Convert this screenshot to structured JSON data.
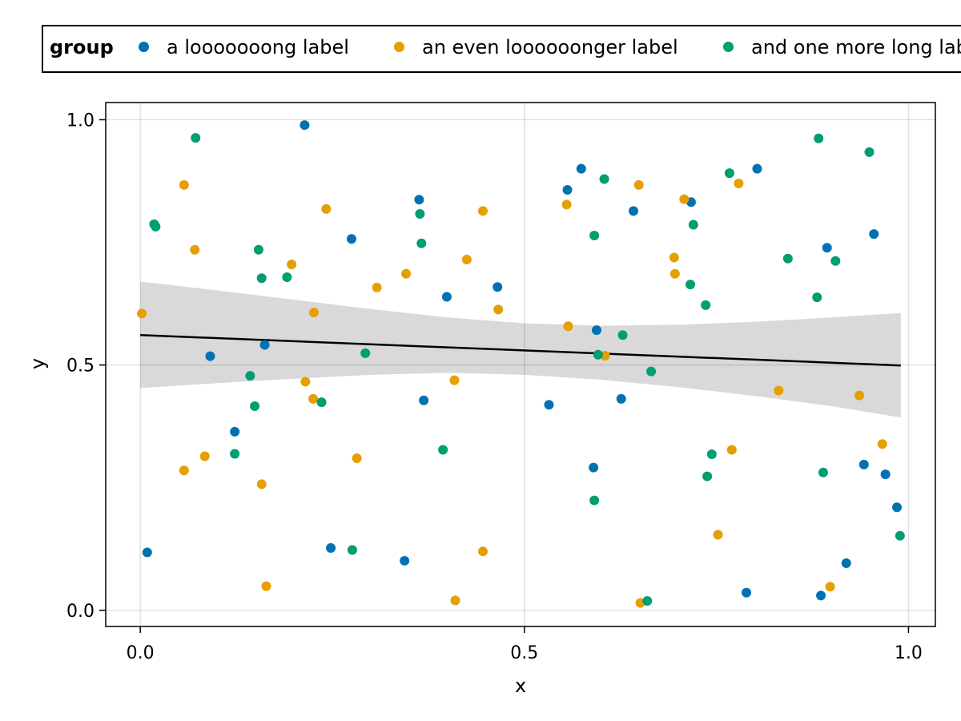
{
  "legend": {
    "title": "group",
    "entries": [
      {
        "label": "a looooooong label",
        "color": "#0072b2"
      },
      {
        "label": "an even loooooonger label",
        "color": "#e69f00"
      },
      {
        "label": "and one more long label",
        "color": "#009e73"
      }
    ]
  },
  "chart_data": {
    "type": "scatter",
    "xlabel": "x",
    "ylabel": "y",
    "xlim": [
      -0.045,
      1.035
    ],
    "ylim": [
      -0.033,
      1.035
    ],
    "xticks": [
      0.0,
      0.5,
      1.0
    ],
    "yticks": [
      0.0,
      0.5,
      1.0
    ],
    "xtick_labels": [
      "0.0",
      "0.5",
      "1.0"
    ],
    "ytick_labels": [
      "0.0",
      "0.5",
      "1.0"
    ],
    "grid": true,
    "legend_position": "top",
    "series": [
      {
        "name": "a looooooong label",
        "color": "#0072b2",
        "points": [
          [
            0.009,
            0.118
          ],
          [
            0.091,
            0.518
          ],
          [
            0.123,
            0.364
          ],
          [
            0.162,
            0.541
          ],
          [
            0.214,
            0.989
          ],
          [
            0.248,
            0.127
          ],
          [
            0.275,
            0.757
          ],
          [
            0.344,
            0.101
          ],
          [
            0.363,
            0.837
          ],
          [
            0.369,
            0.428
          ],
          [
            0.399,
            0.639
          ],
          [
            0.465,
            0.659
          ],
          [
            0.532,
            0.419
          ],
          [
            0.556,
            0.857
          ],
          [
            0.574,
            0.9
          ],
          [
            0.59,
            0.291
          ],
          [
            0.594,
            0.571
          ],
          [
            0.626,
            0.431
          ],
          [
            0.642,
            0.814
          ],
          [
            0.717,
            0.832
          ],
          [
            0.803,
            0.9
          ],
          [
            0.789,
            0.036
          ],
          [
            0.886,
            0.03
          ],
          [
            0.894,
            0.739
          ],
          [
            0.919,
            0.096
          ],
          [
            0.942,
            0.297
          ],
          [
            0.955,
            0.767
          ],
          [
            0.97,
            0.277
          ],
          [
            0.985,
            0.21
          ]
        ]
      },
      {
        "name": "an even loooooonger label",
        "color": "#e69f00",
        "points": [
          [
            0.002,
            0.605
          ],
          [
            0.057,
            0.867
          ],
          [
            0.057,
            0.285
          ],
          [
            0.071,
            0.735
          ],
          [
            0.084,
            0.314
          ],
          [
            0.158,
            0.257
          ],
          [
            0.164,
            0.049
          ],
          [
            0.197,
            0.705
          ],
          [
            0.215,
            0.466
          ],
          [
            0.225,
            0.431
          ],
          [
            0.226,
            0.607
          ],
          [
            0.242,
            0.818
          ],
          [
            0.282,
            0.31
          ],
          [
            0.308,
            0.658
          ],
          [
            0.346,
            0.686
          ],
          [
            0.409,
            0.469
          ],
          [
            0.41,
            0.02
          ],
          [
            0.425,
            0.715
          ],
          [
            0.446,
            0.814
          ],
          [
            0.446,
            0.12
          ],
          [
            0.466,
            0.613
          ],
          [
            0.555,
            0.827
          ],
          [
            0.557,
            0.579
          ],
          [
            0.605,
            0.519
          ],
          [
            0.649,
            0.867
          ],
          [
            0.651,
            0.015
          ],
          [
            0.695,
            0.719
          ],
          [
            0.696,
            0.686
          ],
          [
            0.708,
            0.838
          ],
          [
            0.752,
            0.154
          ],
          [
            0.77,
            0.327
          ],
          [
            0.779,
            0.87
          ],
          [
            0.831,
            0.448
          ],
          [
            0.898,
            0.048
          ],
          [
            0.936,
            0.438
          ],
          [
            0.966,
            0.339
          ]
        ]
      },
      {
        "name": "and one more long label",
        "color": "#009e73",
        "points": [
          [
            0.018,
            0.787
          ],
          [
            0.02,
            0.782
          ],
          [
            0.072,
            0.963
          ],
          [
            0.143,
            0.478
          ],
          [
            0.149,
            0.416
          ],
          [
            0.123,
            0.319
          ],
          [
            0.154,
            0.735
          ],
          [
            0.158,
            0.677
          ],
          [
            0.191,
            0.679
          ],
          [
            0.236,
            0.424
          ],
          [
            0.276,
            0.123
          ],
          [
            0.293,
            0.524
          ],
          [
            0.364,
            0.808
          ],
          [
            0.366,
            0.748
          ],
          [
            0.394,
            0.327
          ],
          [
            0.591,
            0.764
          ],
          [
            0.591,
            0.224
          ],
          [
            0.596,
            0.521
          ],
          [
            0.604,
            0.879
          ],
          [
            0.628,
            0.561
          ],
          [
            0.66,
            0.019
          ],
          [
            0.665,
            0.487
          ],
          [
            0.716,
            0.664
          ],
          [
            0.72,
            0.786
          ],
          [
            0.736,
            0.622
          ],
          [
            0.738,
            0.273
          ],
          [
            0.744,
            0.318
          ],
          [
            0.767,
            0.891
          ],
          [
            0.843,
            0.717
          ],
          [
            0.881,
            0.638
          ],
          [
            0.883,
            0.962
          ],
          [
            0.889,
            0.281
          ],
          [
            0.905,
            0.712
          ],
          [
            0.949,
            0.934
          ],
          [
            0.989,
            0.152
          ]
        ]
      }
    ],
    "fit_line": {
      "color": "#000000",
      "points": [
        [
          0.0,
          0.561
        ],
        [
          0.99,
          0.499
        ]
      ]
    },
    "confidence_band": {
      "color": "#d9d9d9",
      "x": [
        0.0,
        0.1,
        0.2,
        0.3,
        0.4,
        0.5,
        0.6,
        0.7,
        0.8,
        0.9,
        0.99
      ],
      "upper": [
        0.67,
        0.652,
        0.633,
        0.614,
        0.597,
        0.585,
        0.58,
        0.582,
        0.588,
        0.597,
        0.606
      ],
      "lower": [
        0.453,
        0.463,
        0.472,
        0.48,
        0.484,
        0.48,
        0.47,
        0.455,
        0.437,
        0.416,
        0.393
      ]
    }
  }
}
